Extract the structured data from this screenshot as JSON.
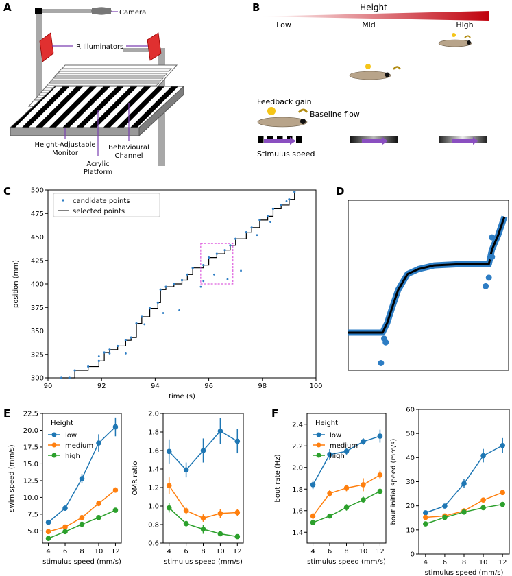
{
  "panel_letters": {
    "a": "A",
    "b": "B",
    "c": "C",
    "d": "D",
    "e": "E",
    "f": "F"
  },
  "panel_a": {
    "camera": "Camera",
    "ir": "IR Illuminators",
    "monitor_line1": "Height-Adjustable",
    "monitor_line2": "Monitor",
    "acrylic_line1": "Acrylic",
    "acrylic_line2": "Platform",
    "channel_line1": "Behavioural",
    "channel_line2": "Channel"
  },
  "panel_b": {
    "height_title": "Height",
    "low": "Low",
    "mid": "Mid",
    "high": "High",
    "feedback_gain": "Feedback gain",
    "baseline_flow": "Baseline flow",
    "stimulus_speed": "Stimulus speed",
    "colors": {
      "gradient_start": "#ffffff",
      "gradient_end": "#c0000c",
      "fish_body": "#b8a48a",
      "feedback": "#f5c518",
      "flow_arrow": "#b08a10",
      "stimulus_arrow": "#8a4fc0"
    }
  },
  "chart_data": [
    {
      "panel": "C",
      "type": "scatter",
      "xlabel": "time (s)",
      "ylabel": "position (mm)",
      "xlim": [
        90,
        100
      ],
      "ylim": [
        300,
        500
      ],
      "xticks": [
        "90",
        "92",
        "94",
        "96",
        "98",
        "100"
      ],
      "yticks": [
        "300",
        "325",
        "350",
        "375",
        "400",
        "425",
        "450",
        "475",
        "500"
      ],
      "legend": {
        "position": "top-left",
        "entries": [
          "candidate points",
          "selected points"
        ]
      },
      "series": [
        {
          "name": "selected points",
          "style": "line",
          "color": "#000000",
          "x": [
            90.5,
            90.8,
            91.0,
            91.5,
            91.9,
            92.1,
            92.3,
            92.6,
            92.9,
            93.1,
            93.3,
            93.5,
            93.8,
            94.1,
            94.2,
            94.4,
            94.7,
            95.0,
            95.2,
            95.4,
            95.8,
            96.0,
            96.3,
            96.6,
            96.8,
            97.0,
            97.4,
            97.6,
            97.9,
            98.2,
            98.4,
            98.7,
            99.0,
            99.2
          ],
          "y": [
            300,
            300,
            308,
            312,
            318,
            327,
            330,
            334,
            340,
            343,
            358,
            365,
            374,
            380,
            394,
            397,
            400,
            404,
            410,
            417,
            420,
            428,
            432,
            436,
            441,
            448,
            455,
            460,
            468,
            472,
            480,
            484,
            490,
            498
          ]
        },
        {
          "name": "candidate points",
          "style": "points",
          "color": "#2d7dc4",
          "x": [
            91.9,
            92.3,
            92.9,
            93.6,
            94.3,
            94.9,
            95.7,
            95.8,
            96.2,
            96.7,
            97.2,
            97.8,
            98.3,
            98.9
          ],
          "y": [
            323,
            326,
            326,
            357,
            369,
            372,
            397,
            403,
            410,
            405,
            414,
            452,
            466,
            488
          ]
        }
      ]
    },
    {
      "panel": "D",
      "type": "scatter",
      "legend": {
        "position": "none",
        "entries": []
      },
      "series": [
        {
          "name": "selected points",
          "style": "line",
          "color": "#000000",
          "x": [
            0,
            0.22,
            0.25,
            0.28,
            0.32,
            0.38,
            0.45,
            0.55,
            0.7,
            0.85,
            0.9,
            0.92,
            0.96,
            1.0
          ],
          "y": [
            0,
            0,
            0.08,
            0.2,
            0.35,
            0.48,
            0.52,
            0.55,
            0.56,
            0.56,
            0.56,
            0.68,
            0.8,
            0.95
          ]
        },
        {
          "name": "candidate points",
          "style": "points",
          "color": "#2d7dc4",
          "x": [
            0.23,
            0.24,
            0.21,
            0.9,
            0.92,
            0.92,
            0.88
          ],
          "y": [
            -0.05,
            -0.08,
            -0.25,
            0.45,
            0.62,
            0.78,
            0.38
          ]
        }
      ]
    },
    {
      "panel": "E-left",
      "type": "line",
      "xlabel": "stimulus speed (mm/s)",
      "ylabel": "swim speed (mm/s)",
      "x": [
        4,
        6,
        8,
        10,
        12
      ],
      "xticks": [
        "4",
        "6",
        "8",
        "10",
        "12"
      ],
      "ylim": [
        3.2,
        22.5
      ],
      "yticks": [
        "5.0",
        "7.5",
        "10.0",
        "12.5",
        "15.0",
        "17.5",
        "20.0",
        "22.5"
      ],
      "legend": {
        "position": "top-left",
        "title": "Height",
        "entries": [
          "low",
          "medium",
          "high"
        ]
      },
      "series": [
        {
          "name": "low",
          "color": "#1f77b4",
          "values": [
            6.3,
            8.4,
            12.8,
            18.1,
            20.5
          ],
          "errors": [
            0.3,
            0.4,
            0.7,
            1.3,
            1.4
          ]
        },
        {
          "name": "medium",
          "color": "#ff7f0e",
          "values": [
            4.9,
            5.6,
            7.0,
            9.1,
            11.1
          ],
          "errors": [
            0.3,
            0.3,
            0.3,
            0.4,
            0.4
          ]
        },
        {
          "name": "high",
          "color": "#2ca02c",
          "values": [
            3.9,
            4.9,
            6.0,
            7.0,
            8.1
          ],
          "errors": [
            0.2,
            0.2,
            0.3,
            0.3,
            0.3
          ]
        }
      ]
    },
    {
      "panel": "E-right",
      "type": "line",
      "xlabel": "stimulus speed (mm/s)",
      "ylabel": "OMR ratio",
      "x": [
        4,
        6,
        8,
        10,
        12
      ],
      "xticks": [
        "4",
        "6",
        "8",
        "10",
        "12"
      ],
      "ylim": [
        0.6,
        2.0
      ],
      "yticks": [
        "0.6",
        "0.8",
        "1.0",
        "1.2",
        "1.4",
        "1.6",
        "1.8",
        "2.0"
      ],
      "series": [
        {
          "name": "low",
          "color": "#1f77b4",
          "values": [
            1.59,
            1.39,
            1.6,
            1.81,
            1.7
          ],
          "errors": [
            0.13,
            0.08,
            0.13,
            0.14,
            0.13
          ]
        },
        {
          "name": "medium",
          "color": "#ff7f0e",
          "values": [
            1.22,
            0.95,
            0.87,
            0.92,
            0.93
          ],
          "errors": [
            0.09,
            0.04,
            0.04,
            0.05,
            0.04
          ]
        },
        {
          "name": "high",
          "color": "#2ca02c",
          "values": [
            0.98,
            0.81,
            0.75,
            0.7,
            0.67
          ],
          "errors": [
            0.05,
            0.03,
            0.05,
            0.02,
            0.02
          ]
        }
      ]
    },
    {
      "panel": "F-left",
      "type": "line",
      "xlabel": "stimulus speed (mm/s)",
      "ylabel": "bout rate (Hz)",
      "x": [
        4,
        6,
        8,
        10,
        12
      ],
      "xticks": [
        "4",
        "6",
        "8",
        "10",
        "12"
      ],
      "ylim": [
        1.3,
        2.5
      ],
      "yticks": [
        "1.4",
        "1.6",
        "1.8",
        "2.0",
        "2.2",
        "2.4"
      ],
      "legend": {
        "position": "top-left",
        "title": "Height",
        "entries": [
          "low",
          "medium",
          "high"
        ]
      },
      "series": [
        {
          "name": "low",
          "color": "#1f77b4",
          "values": [
            1.84,
            2.12,
            2.15,
            2.24,
            2.29
          ],
          "errors": [
            0.04,
            0.05,
            0.03,
            0.03,
            0.06
          ]
        },
        {
          "name": "medium",
          "color": "#ff7f0e",
          "values": [
            1.55,
            1.76,
            1.81,
            1.84,
            1.93
          ],
          "errors": [
            0.03,
            0.03,
            0.03,
            0.06,
            0.04
          ]
        },
        {
          "name": "high",
          "color": "#2ca02c",
          "values": [
            1.49,
            1.55,
            1.63,
            1.7,
            1.78
          ],
          "errors": [
            0.02,
            0.02,
            0.03,
            0.03,
            0.02
          ]
        }
      ]
    },
    {
      "panel": "F-right",
      "type": "line",
      "xlabel": "stimulus speed (mm/s)",
      "ylabel": "bout initial speed (mm/s)",
      "x": [
        4,
        6,
        8,
        10,
        12
      ],
      "xticks": [
        "4",
        "6",
        "8",
        "10",
        "12"
      ],
      "ylim": [
        0,
        60
      ],
      "yticks": [
        "0",
        "10",
        "20",
        "30",
        "40",
        "50",
        "60"
      ],
      "series": [
        {
          "name": "low",
          "color": "#1f77b4",
          "values": [
            17.1,
            19.9,
            29.2,
            40.8,
            45.0
          ],
          "errors": [
            0.6,
            0.8,
            1.8,
            2.8,
            3.1
          ]
        },
        {
          "name": "medium",
          "color": "#ff7f0e",
          "values": [
            15.2,
            15.8,
            17.9,
            22.4,
            25.5
          ],
          "errors": [
            0.5,
            0.5,
            0.6,
            0.7,
            0.7
          ]
        },
        {
          "name": "high",
          "color": "#2ca02c",
          "values": [
            12.5,
            15.2,
            17.4,
            19.2,
            20.6
          ],
          "errors": [
            0.4,
            0.5,
            0.5,
            0.5,
            0.6
          ]
        }
      ]
    }
  ]
}
